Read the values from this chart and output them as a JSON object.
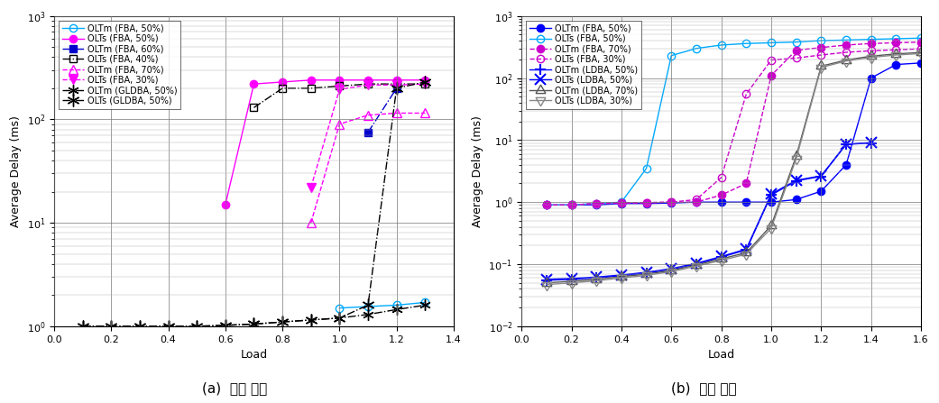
{
  "left": {
    "title": "(a)  하향 전송",
    "xlabel": "Load",
    "ylabel": "Average Delay (ms)",
    "xlim": [
      0,
      1.4
    ],
    "ylim_log": [
      1.0,
      1000.0
    ],
    "series": [
      {
        "label": "OLTm (FBA, 50%)",
        "color": "#00AAFF",
        "marker": "o",
        "mfc": "none",
        "mec": "#00AAFF",
        "linestyle": "-",
        "linewidth": 1.0,
        "x": [
          1.0,
          1.1,
          1.2,
          1.3
        ],
        "y": [
          1.5,
          1.55,
          1.6,
          1.7
        ]
      },
      {
        "label": "OLTs (FBA, 50%)",
        "color": "#FF00FF",
        "marker": "o",
        "mfc": "#FF00FF",
        "mec": "#FF00FF",
        "linestyle": "-",
        "linewidth": 1.0,
        "x": [
          0.6,
          0.7,
          0.8,
          0.9,
          1.0,
          1.1,
          1.2,
          1.3
        ],
        "y": [
          15.0,
          220.0,
          230.0,
          240.0,
          240.0,
          240.0,
          240.0,
          240.0
        ]
      },
      {
        "label": "OLTm (FBA, 60%)",
        "color": "#0000CC",
        "marker": "s",
        "mfc": "#0000CC",
        "mec": "#0000CC",
        "linestyle": "-.",
        "linewidth": 1.0,
        "x": [
          1.1,
          1.2
        ],
        "y": [
          75.0,
          200.0
        ]
      },
      {
        "label": "OLTs (FBA, 40%)",
        "color": "#000000",
        "marker": "s",
        "mfc": "none",
        "mec": "#000000",
        "linestyle": "-.",
        "linewidth": 1.0,
        "x": [
          0.7,
          0.8,
          0.9,
          1.0,
          1.1,
          1.2,
          1.3
        ],
        "y": [
          130.0,
          200.0,
          200.0,
          210.0,
          220.0,
          220.0,
          220.0
        ]
      },
      {
        "label": "OLTm (FBA, 70%)",
        "color": "#FF00FF",
        "marker": "^",
        "mfc": "none",
        "mec": "#FF00FF",
        "linestyle": "--",
        "linewidth": 1.0,
        "x": [
          0.9,
          1.0,
          1.1,
          1.2,
          1.3
        ],
        "y": [
          10.0,
          90.0,
          110.0,
          115.0,
          115.0
        ]
      },
      {
        "label": "OLTs (FBA, 30%)",
        "color": "#FF00FF",
        "marker": "v",
        "mfc": "#FF00FF",
        "mec": "#FF00FF",
        "linestyle": "--",
        "linewidth": 1.0,
        "x": [
          0.9,
          1.0,
          1.1,
          1.2,
          1.3
        ],
        "y": [
          22.0,
          195.0,
          215.0,
          215.0,
          220.0
        ]
      },
      {
        "label": "OLTm (GLDBA, 50%)",
        "color": "#000000",
        "marker": "star_filled",
        "mfc": "#000000",
        "mec": "#000000",
        "linestyle": "-.",
        "linewidth": 1.0,
        "x": [
          0.1,
          0.2,
          0.3,
          0.4,
          0.5,
          0.6,
          0.7,
          0.8,
          0.9,
          1.0,
          1.1,
          1.2,
          1.3
        ],
        "y": [
          1.0,
          1.0,
          1.0,
          1.0,
          1.0,
          1.02,
          1.05,
          1.1,
          1.15,
          1.2,
          1.3,
          1.45,
          1.6
        ]
      },
      {
        "label": "OLTs (GLDBA, 50%)",
        "color": "#000000",
        "marker": "star_open",
        "mfc": "none",
        "mec": "#000000",
        "linestyle": "-.",
        "linewidth": 1.0,
        "x": [
          0.1,
          0.2,
          0.3,
          0.4,
          0.5,
          0.6,
          0.7,
          0.8,
          0.9,
          1.0,
          1.1,
          1.2,
          1.3
        ],
        "y": [
          1.0,
          1.0,
          1.0,
          1.0,
          1.0,
          1.02,
          1.05,
          1.1,
          1.15,
          1.2,
          1.6,
          200.0,
          230.0
        ]
      }
    ]
  },
  "right": {
    "title": "(b)  상향 전송",
    "xlabel": "Load",
    "ylabel": "Average Delay (ms)",
    "xlim": [
      0,
      1.6
    ],
    "ylim_log": [
      0.01,
      1000.0
    ],
    "series": [
      {
        "label": "OLTm (FBA, 50%)",
        "color": "#0000FF",
        "marker": "o",
        "mfc": "#0000FF",
        "mec": "#0000FF",
        "linestyle": "-",
        "linewidth": 1.0,
        "x": [
          0.1,
          0.2,
          0.3,
          0.4,
          0.5,
          0.6,
          0.7,
          0.8,
          0.9,
          1.0,
          1.1,
          1.2,
          1.3,
          1.4,
          1.5,
          1.6
        ],
        "y": [
          0.9,
          0.9,
          0.9,
          0.95,
          0.95,
          0.97,
          1.0,
          1.0,
          1.0,
          1.0,
          1.1,
          1.5,
          4.0,
          100.0,
          165.0,
          175.0
        ]
      },
      {
        "label": "OLTs (FBA, 50%)",
        "color": "#00AAFF",
        "marker": "o",
        "mfc": "none",
        "mec": "#00AAFF",
        "linestyle": "-",
        "linewidth": 1.0,
        "x": [
          0.1,
          0.2,
          0.3,
          0.4,
          0.5,
          0.6,
          0.7,
          0.8,
          0.9,
          1.0,
          1.1,
          1.2,
          1.3,
          1.4,
          1.5,
          1.6
        ],
        "y": [
          0.9,
          0.9,
          0.95,
          1.0,
          3.5,
          230.0,
          300.0,
          340.0,
          360.0,
          370.0,
          380.0,
          400.0,
          410.0,
          420.0,
          430.0,
          440.0
        ]
      },
      {
        "label": "OLTm (FBA, 70%)",
        "color": "#CC00CC",
        "marker": "o",
        "mfc": "#CC00CC",
        "mec": "#CC00CC",
        "linestyle": "--",
        "linewidth": 1.0,
        "x": [
          0.1,
          0.2,
          0.3,
          0.4,
          0.5,
          0.6,
          0.7,
          0.8,
          0.9,
          1.0,
          1.1,
          1.2,
          1.3,
          1.4,
          1.5,
          1.6
        ],
        "y": [
          0.9,
          0.9,
          0.95,
          0.97,
          0.98,
          1.0,
          1.0,
          1.3,
          2.0,
          110.0,
          280.0,
          310.0,
          340.0,
          360.0,
          370.0,
          380.0
        ]
      },
      {
        "label": "OLTs (FBA, 30%)",
        "color": "#CC00CC",
        "marker": "o",
        "mfc": "none",
        "mec": "#CC00CC",
        "linestyle": "--",
        "linewidth": 1.0,
        "x": [
          0.1,
          0.2,
          0.3,
          0.4,
          0.5,
          0.6,
          0.7,
          0.8,
          0.9,
          1.0,
          1.1,
          1.2,
          1.3,
          1.4,
          1.5,
          1.6
        ],
        "y": [
          0.9,
          0.9,
          0.95,
          0.97,
          0.98,
          1.0,
          1.1,
          2.5,
          55.0,
          195.0,
          210.0,
          235.0,
          260.0,
          275.0,
          285.0,
          295.0
        ]
      },
      {
        "label": "OLTm (LDBA, 50%)",
        "color": "#0000FF",
        "marker": "+",
        "mfc": "#0000FF",
        "mec": "#0000FF",
        "linestyle": "-",
        "linewidth": 1.0,
        "x": [
          0.1,
          0.2,
          0.3,
          0.4,
          0.5,
          0.6,
          0.7,
          0.8,
          0.9,
          1.0,
          1.1,
          1.2,
          1.3,
          1.4
        ],
        "y": [
          0.055,
          0.057,
          0.06,
          0.065,
          0.072,
          0.082,
          0.1,
          0.13,
          0.17,
          1.3,
          2.2,
          2.6,
          8.5,
          9.0
        ]
      },
      {
        "label": "OLTs (LDBA, 50%)",
        "color": "#0000FF",
        "marker": "x",
        "mfc": "#0000FF",
        "mec": "#0000FF",
        "linestyle": "-",
        "linewidth": 1.0,
        "x": [
          0.1,
          0.2,
          0.3,
          0.4,
          0.5,
          0.6,
          0.7,
          0.8,
          0.9,
          1.0,
          1.1,
          1.2,
          1.3,
          1.4
        ],
        "y": [
          0.057,
          0.059,
          0.062,
          0.067,
          0.074,
          0.085,
          0.103,
          0.133,
          0.175,
          1.35,
          2.25,
          2.65,
          8.6,
          9.1
        ]
      },
      {
        "label": "OLTm (LDBA, 70%)",
        "color": "#555555",
        "marker": "tri_right_open",
        "mfc": "none",
        "mec": "#555555",
        "linestyle": "-",
        "linewidth": 1.0,
        "x": [
          0.1,
          0.2,
          0.3,
          0.4,
          0.5,
          0.6,
          0.7,
          0.8,
          0.9,
          1.0,
          1.1,
          1.2,
          1.3,
          1.4,
          1.5,
          1.6
        ],
        "y": [
          0.05,
          0.053,
          0.057,
          0.063,
          0.069,
          0.079,
          0.097,
          0.122,
          0.153,
          0.42,
          5.5,
          155.0,
          195.0,
          225.0,
          245.0,
          258.0
        ]
      },
      {
        "label": "OLTs (LDBA, 30%)",
        "color": "#888888",
        "marker": "tri_left_open",
        "mfc": "none",
        "mec": "#888888",
        "linestyle": "-",
        "linewidth": 1.0,
        "x": [
          0.1,
          0.2,
          0.3,
          0.4,
          0.5,
          0.6,
          0.7,
          0.8,
          0.9,
          1.0,
          1.1,
          1.2,
          1.3,
          1.4,
          1.5,
          1.6
        ],
        "y": [
          0.047,
          0.05,
          0.054,
          0.06,
          0.066,
          0.076,
          0.093,
          0.115,
          0.145,
          0.38,
          5.0,
          148.0,
          188.0,
          215.0,
          235.0,
          248.0
        ]
      }
    ]
  }
}
